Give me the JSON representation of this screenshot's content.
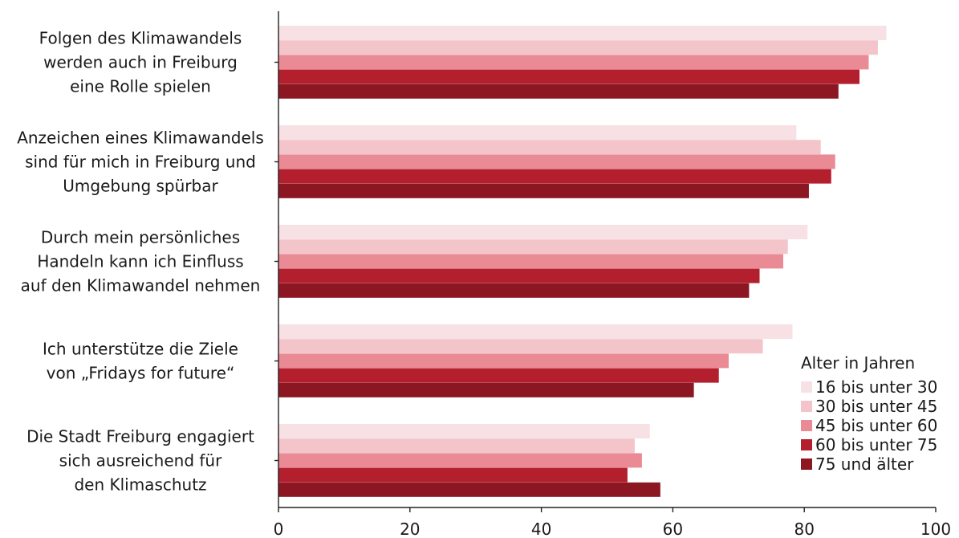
{
  "chart_data": {
    "type": "bar",
    "orientation": "horizontal",
    "categories": [
      [
        "Folgen des Klimawandels",
        "werden auch in Freiburg",
        "eine Rolle spielen"
      ],
      [
        "Anzeichen eines Klimawandels",
        "sind für mich in Freiburg und",
        "Umgebung spürbar"
      ],
      [
        "Durch mein persönliches",
        "Handeln kann ich Einfluss",
        "auf den Klimawandel nehmen"
      ],
      [
        "Ich unterstütze die Ziele",
        "von „Fridays for future“"
      ],
      [
        "Die Stadt Freiburg engagiert",
        "sich ausreichend für",
        "den Klimaschutz"
      ]
    ],
    "series": [
      {
        "name": "16 bis unter 30",
        "color": "#f7e1e4",
        "values": [
          92.5,
          78.8,
          80.5,
          78.2,
          56.5
        ]
      },
      {
        "name": "30 bis unter 45",
        "color": "#f3c5ca",
        "values": [
          91.2,
          82.5,
          77.5,
          73.7,
          54.2
        ]
      },
      {
        "name": "45 bis unter 60",
        "color": "#ea8a94",
        "values": [
          89.8,
          84.7,
          76.8,
          68.5,
          55.3
        ]
      },
      {
        "name": "60 bis unter 75",
        "color": "#b41f2e",
        "values": [
          88.4,
          84.1,
          73.2,
          67.0,
          53.1
        ]
      },
      {
        "name": "75 und älter",
        "color": "#8c1622",
        "values": [
          85.2,
          80.7,
          71.6,
          63.2,
          58.1
        ]
      }
    ],
    "xlim": [
      0,
      100
    ],
    "xticks": [
      0,
      20,
      40,
      60,
      80,
      100
    ],
    "legend_title": "Alter in Jahren",
    "legend_position": "bottom-right",
    "grid": false
  }
}
